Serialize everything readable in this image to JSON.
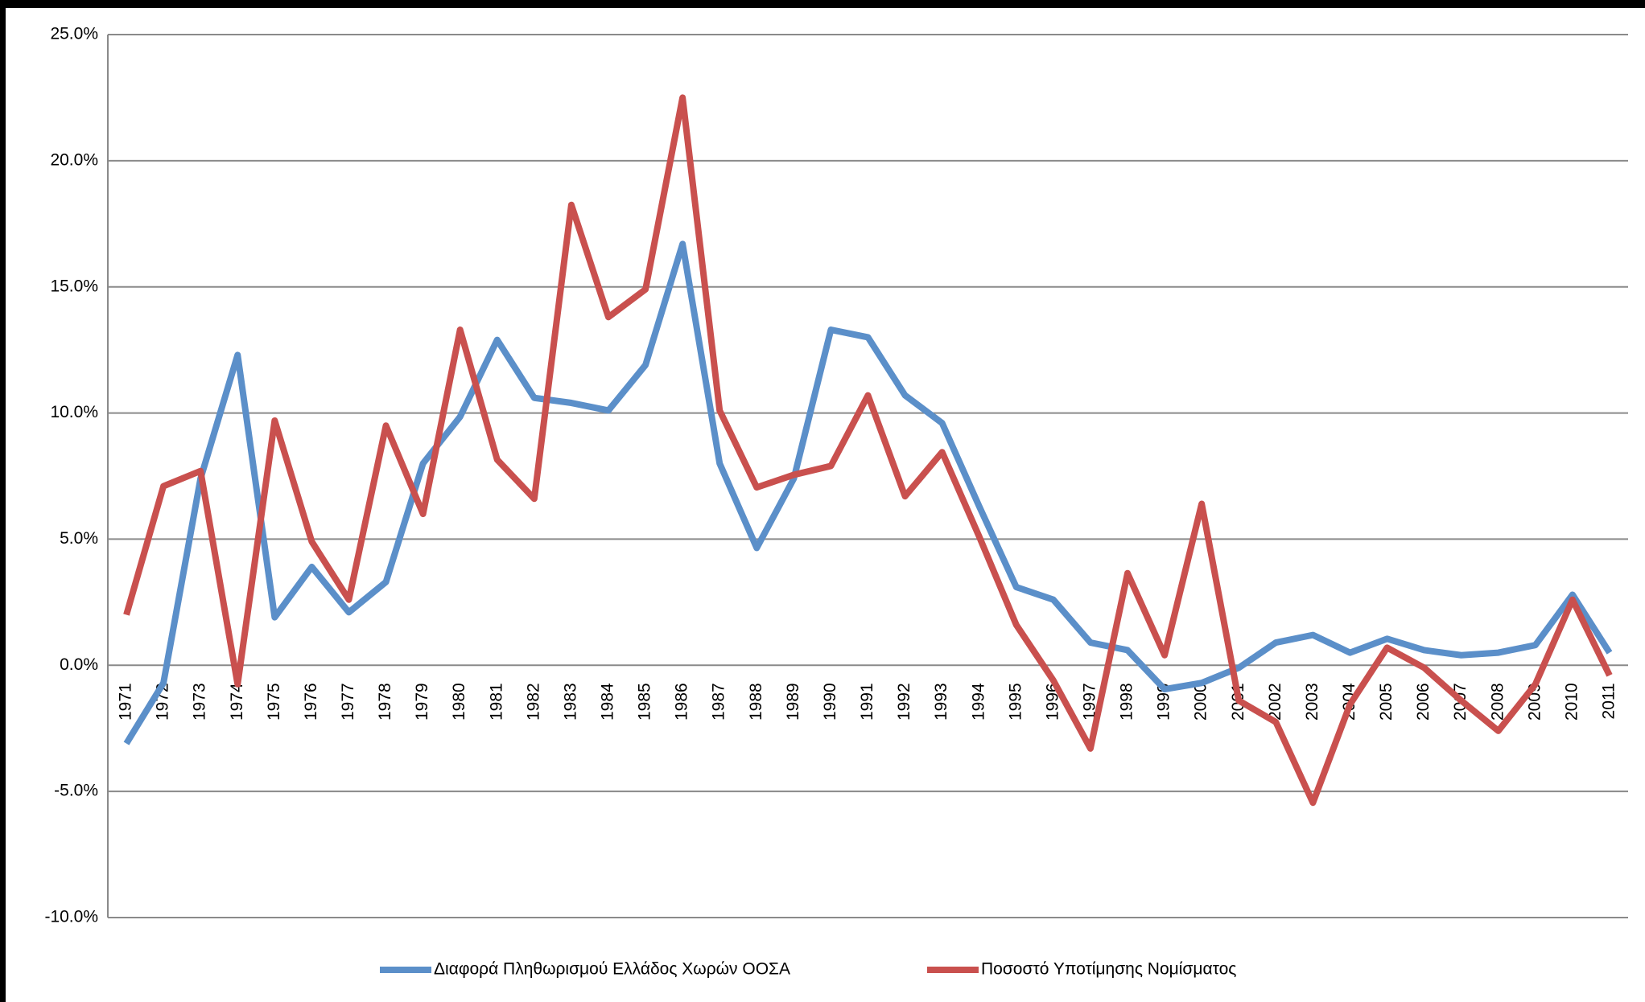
{
  "chart_data": {
    "type": "line",
    "categories": [
      "1971",
      "1972",
      "1973",
      "1974",
      "1975",
      "1976",
      "1977",
      "1978",
      "1979",
      "1980",
      "1981",
      "1982",
      "1983",
      "1984",
      "1985",
      "1986",
      "1987",
      "1988",
      "1989",
      "1990",
      "1991",
      "1992",
      "1993",
      "1994",
      "1995",
      "1996",
      "1997",
      "1998",
      "1999",
      "2000",
      "2001",
      "2002",
      "2003",
      "2004",
      "2005",
      "2006",
      "2007",
      "2008",
      "2009",
      "2010",
      "2011"
    ],
    "series": [
      {
        "name": "Διαφορά Πληθωρισμού Ελλάδος Χωρών ΟΟΣΑ",
        "color": "#5b8fc9",
        "values": [
          -3.1,
          -0.7,
          7.4,
          12.3,
          1.9,
          3.9,
          2.1,
          3.3,
          8.0,
          9.85,
          12.9,
          10.6,
          10.4,
          10.1,
          11.9,
          16.7,
          8.0,
          4.65,
          7.4,
          13.3,
          13.0,
          10.7,
          9.6,
          6.3,
          3.1,
          2.6,
          0.9,
          0.6,
          -0.95,
          -0.7,
          -0.1,
          0.9,
          1.2,
          0.5,
          1.05,
          0.6,
          0.4,
          0.5,
          0.8,
          2.8,
          0.5
        ]
      },
      {
        "name": "Ποσοστό Υποτίμησης Νομίσματος",
        "color": "#c9504e",
        "values": [
          2.0,
          7.1,
          7.7,
          -0.75,
          9.7,
          4.9,
          2.6,
          9.5,
          6.0,
          13.3,
          8.15,
          6.6,
          18.25,
          13.8,
          14.9,
          22.5,
          10.1,
          7.05,
          7.55,
          7.9,
          10.7,
          6.7,
          8.45,
          5.1,
          1.6,
          -0.6,
          -3.3,
          3.65,
          0.4,
          6.4,
          -1.4,
          -2.25,
          -5.45,
          -1.55,
          0.7,
          -0.1,
          -1.4,
          -2.6,
          -0.75,
          2.6,
          -0.4
        ]
      }
    ],
    "ylim": [
      -10,
      25
    ],
    "yticks": [
      {
        "value": -10,
        "label": "-10.0%"
      },
      {
        "value": -5,
        "label": "-5.0%"
      },
      {
        "value": 0,
        "label": "0.0%"
      },
      {
        "value": 5,
        "label": "5.0%"
      },
      {
        "value": 10,
        "label": "10.0%"
      },
      {
        "value": 15,
        "label": "15.0%"
      },
      {
        "value": 20,
        "label": "20.0%"
      },
      {
        "value": 25,
        "label": "25.0%"
      }
    ],
    "grid": true,
    "legend": "bottom"
  }
}
